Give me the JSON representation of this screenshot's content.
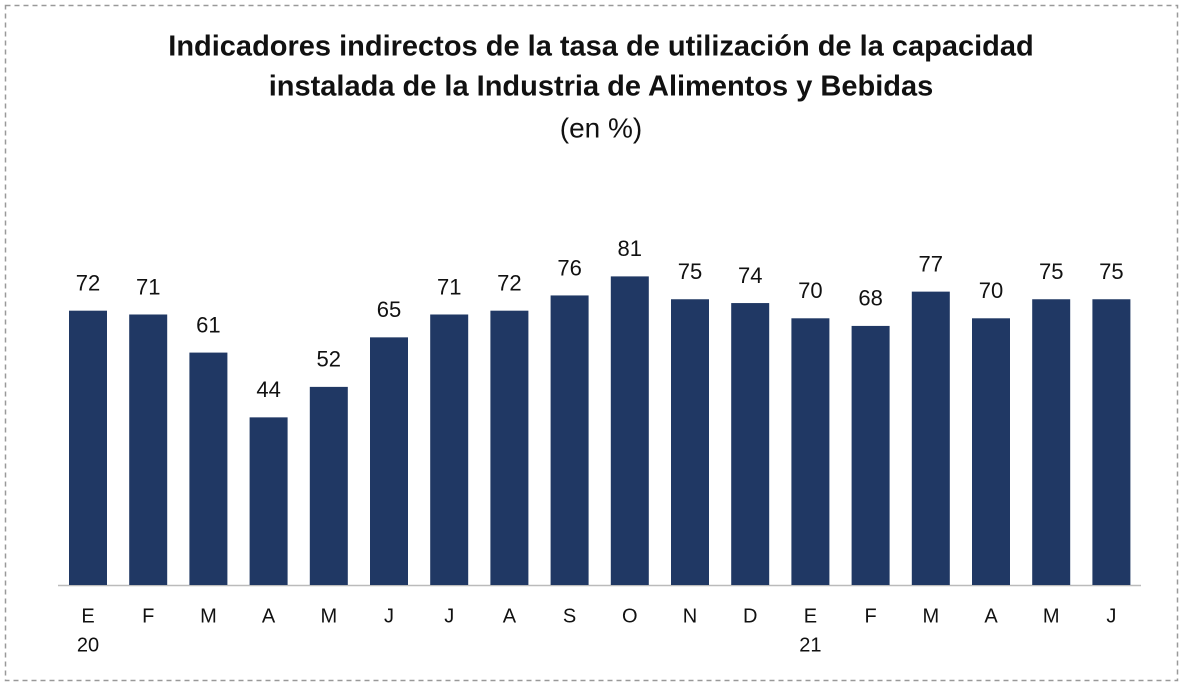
{
  "chart_data": {
    "type": "bar",
    "title": [
      "Indicadores indirectos de la tasa de utilización de la capacidad",
      "instalada de la Industria de Alimentos y Bebidas"
    ],
    "subtitle": "(en %)",
    "categories": [
      "E",
      "F",
      "M",
      "A",
      "M",
      "J",
      "J",
      "A",
      "S",
      "O",
      "N",
      "D",
      "E",
      "F",
      "M",
      "A",
      "M",
      "J"
    ],
    "category_years": [
      "20",
      null,
      null,
      null,
      null,
      null,
      null,
      null,
      null,
      null,
      null,
      null,
      "21",
      null,
      null,
      null,
      null,
      null
    ],
    "values": [
      72,
      71,
      61,
      44,
      52,
      65,
      71,
      72,
      76,
      81,
      75,
      74,
      70,
      68,
      77,
      70,
      75,
      75
    ],
    "color": "#203864"
  }
}
